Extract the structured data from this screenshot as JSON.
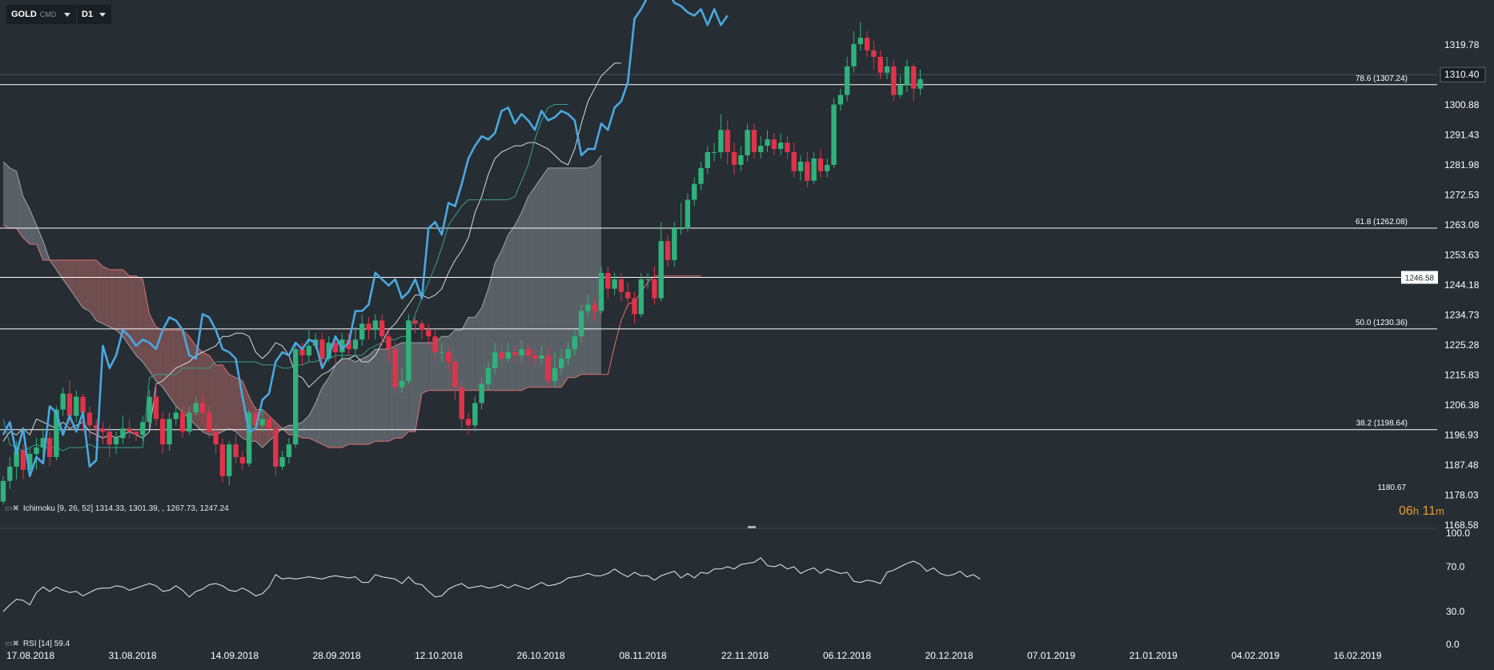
{
  "toolbar": {
    "symbol": "GOLD",
    "symbol_sub": "CMD",
    "timeframe": "D1"
  },
  "indicators": {
    "ichimoku_label": "Ichimoku [9, 26, 52]  1314.33,  1301.39,  , 1267.73,  1247.24",
    "rsi_label": "RSI [14]  59.4"
  },
  "timer": {
    "hours": "06",
    "h_unit": "h",
    "minutes": "11",
    "m_unit": "m"
  },
  "colors": {
    "background": "#262d33",
    "bull": "#2fb27b",
    "bear": "#e0334a",
    "comparison_line": "#4aa8e0",
    "cloud_bear": "#8a5a59",
    "cloud_bull": "#6b7378",
    "timer": "#e89a2c"
  },
  "chart_data": {
    "type": "candlestick",
    "symbol": "GOLD",
    "timeframe": "D1",
    "y_ticks": [
      1319.78,
      1310.4,
      1300.88,
      1291.43,
      1281.98,
      1272.53,
      1263.08,
      1253.63,
      1244.18,
      1234.73,
      1225.28,
      1215.83,
      1206.38,
      1196.93,
      1187.48,
      1178.03,
      1168.58
    ],
    "x_ticks": [
      "17.08.2018",
      "31.08.2018",
      "14.09.2018",
      "28.09.2018",
      "12.10.2018",
      "26.10.2018",
      "08.11.2018",
      "22.11.2018",
      "06.12.2018",
      "20.12.2018",
      "07.01.2019",
      "21.01.2019",
      "04.02.2019",
      "16.02.2019"
    ],
    "current_price": 1310.4,
    "price_labels": [
      {
        "text": "1180.67",
        "value": 1180.67
      },
      {
        "text": "1246.58",
        "value": 1246.58
      }
    ],
    "fib_levels": [
      {
        "label": "78.6 (1307.24)",
        "value": 1307.24
      },
      {
        "label": "61.8 (1262.08)",
        "value": 1262.08
      },
      {
        "label": "50.0 (1230.36)",
        "value": 1230.36
      },
      {
        "label": "38.2 (1198.64)",
        "value": 1198.64
      }
    ],
    "candles": [
      [
        1176,
        1182.5,
        1175,
        1184
      ],
      [
        1182.5,
        1187,
        1180,
        1190
      ],
      [
        1187,
        1192,
        1183,
        1195
      ],
      [
        1192,
        1186,
        1183,
        1194
      ],
      [
        1186,
        1191,
        1184,
        1193
      ],
      [
        1191,
        1193,
        1186,
        1196
      ],
      [
        1193,
        1196,
        1190,
        1199
      ],
      [
        1196,
        1190,
        1187,
        1198
      ],
      [
        1190,
        1205,
        1189,
        1206
      ],
      [
        1205,
        1210,
        1203,
        1212
      ],
      [
        1210,
        1203,
        1200,
        1214
      ],
      [
        1203,
        1209,
        1201,
        1211
      ],
      [
        1209,
        1204,
        1198,
        1210
      ],
      [
        1204,
        1200,
        1196,
        1206
      ],
      [
        1200,
        1199,
        1195,
        1202
      ],
      [
        1199,
        1198,
        1194,
        1201
      ],
      [
        1198,
        1194,
        1190,
        1200
      ],
      [
        1194,
        1196,
        1191,
        1198
      ],
      [
        1196,
        1199,
        1194,
        1203
      ],
      [
        1199,
        1198,
        1196,
        1202
      ],
      [
        1198,
        1197,
        1195,
        1199
      ],
      [
        1197,
        1201,
        1195,
        1203
      ],
      [
        1201,
        1209,
        1199,
        1211
      ],
      [
        1209,
        1202,
        1200,
        1213
      ],
      [
        1202,
        1194,
        1191,
        1204
      ],
      [
        1194,
        1202,
        1192,
        1204
      ],
      [
        1202,
        1204,
        1200,
        1206
      ],
      [
        1204,
        1198,
        1196,
        1206
      ],
      [
        1198,
        1204,
        1197,
        1206
      ],
      [
        1204,
        1207,
        1203,
        1209
      ],
      [
        1207,
        1204,
        1200,
        1210
      ],
      [
        1204,
        1198,
        1196,
        1206
      ],
      [
        1198,
        1194,
        1191,
        1200
      ],
      [
        1194,
        1184,
        1182,
        1196
      ],
      [
        1184,
        1194,
        1181,
        1195
      ],
      [
        1194,
        1190,
        1188,
        1197
      ],
      [
        1190,
        1188,
        1186,
        1192
      ],
      [
        1188,
        1204,
        1187,
        1205
      ],
      [
        1204,
        1200,
        1196,
        1206
      ],
      [
        1200,
        1202,
        1198,
        1205
      ],
      [
        1202,
        1199,
        1197,
        1203
      ],
      [
        1199,
        1187,
        1184,
        1201
      ],
      [
        1187,
        1190,
        1186,
        1192
      ],
      [
        1190,
        1194,
        1188,
        1196
      ],
      [
        1194,
        1224,
        1193,
        1226
      ],
      [
        1224,
        1222,
        1219,
        1226
      ],
      [
        1222,
        1225,
        1220,
        1230
      ],
      [
        1225,
        1227,
        1224,
        1229
      ],
      [
        1227,
        1221,
        1218,
        1229
      ],
      [
        1221,
        1226,
        1220,
        1228
      ],
      [
        1226,
        1223,
        1219,
        1228
      ],
      [
        1223,
        1227,
        1221,
        1229
      ],
      [
        1227,
        1224,
        1222,
        1229
      ],
      [
        1224,
        1227,
        1222,
        1231
      ],
      [
        1227,
        1232,
        1225,
        1235
      ],
      [
        1232,
        1230,
        1227,
        1234
      ],
      [
        1230,
        1233,
        1227,
        1235
      ],
      [
        1233,
        1228,
        1225,
        1235
      ],
      [
        1228,
        1224,
        1220,
        1230
      ],
      [
        1224,
        1212,
        1210,
        1226
      ],
      [
        1212,
        1214,
        1210,
        1218
      ],
      [
        1214,
        1233,
        1213,
        1235
      ],
      [
        1233,
        1232,
        1229,
        1234
      ],
      [
        1232,
        1230,
        1227,
        1233
      ],
      [
        1230,
        1228,
        1225,
        1232
      ],
      [
        1228,
        1223,
        1220,
        1230
      ],
      [
        1223,
        1223,
        1220,
        1226
      ],
      [
        1223,
        1220,
        1217,
        1225
      ],
      [
        1220,
        1212,
        1208,
        1222
      ],
      [
        1212,
        1202,
        1199,
        1214
      ],
      [
        1202,
        1200,
        1197,
        1204
      ],
      [
        1200,
        1207,
        1198,
        1209
      ],
      [
        1207,
        1213,
        1205,
        1215
      ],
      [
        1213,
        1218,
        1211,
        1220
      ],
      [
        1218,
        1223,
        1216,
        1226
      ],
      [
        1223,
        1221,
        1218,
        1225
      ],
      [
        1221,
        1223,
        1220,
        1226
      ],
      [
        1223,
        1222,
        1220,
        1225
      ],
      [
        1222,
        1224,
        1220,
        1227
      ],
      [
        1224,
        1222,
        1220,
        1226
      ],
      [
        1222,
        1221,
        1219,
        1224
      ],
      [
        1221,
        1222,
        1219,
        1225
      ],
      [
        1222,
        1214,
        1212,
        1225
      ],
      [
        1214,
        1218,
        1212,
        1223
      ],
      [
        1218,
        1221,
        1216,
        1224
      ],
      [
        1221,
        1224,
        1219,
        1226
      ],
      [
        1224,
        1228,
        1222,
        1230
      ],
      [
        1228,
        1236,
        1226,
        1238
      ],
      [
        1236,
        1238,
        1234,
        1241
      ],
      [
        1238,
        1236,
        1233,
        1240
      ],
      [
        1236,
        1248,
        1235,
        1250
      ],
      [
        1248,
        1243,
        1240,
        1250
      ],
      [
        1243,
        1246,
        1241,
        1248
      ],
      [
        1246,
        1242,
        1239,
        1248
      ],
      [
        1242,
        1240,
        1237,
        1245
      ],
      [
        1240,
        1235,
        1232,
        1242
      ],
      [
        1235,
        1246,
        1234,
        1248
      ],
      [
        1246,
        1246,
        1243,
        1248
      ],
      [
        1246,
        1240,
        1238,
        1250
      ],
      [
        1240,
        1258,
        1239,
        1264
      ],
      [
        1258,
        1252,
        1250,
        1260
      ],
      [
        1252,
        1262,
        1250,
        1264
      ],
      [
        1262,
        1262,
        1260,
        1270
      ],
      [
        1262,
        1271,
        1261,
        1273
      ],
      [
        1271,
        1276,
        1269,
        1278
      ],
      [
        1276,
        1281,
        1274,
        1283
      ],
      [
        1281,
        1286,
        1279,
        1288
      ],
      [
        1286,
        1286,
        1283,
        1289
      ],
      [
        1286,
        1293,
        1284,
        1298
      ],
      [
        1293,
        1286,
        1282,
        1296
      ],
      [
        1286,
        1282,
        1279,
        1289
      ],
      [
        1282,
        1285,
        1280,
        1288
      ],
      [
        1285,
        1293,
        1283,
        1295
      ],
      [
        1293,
        1286,
        1284,
        1295
      ],
      [
        1286,
        1288,
        1284,
        1291
      ],
      [
        1288,
        1290,
        1286,
        1293
      ],
      [
        1290,
        1287,
        1285,
        1292
      ],
      [
        1287,
        1289,
        1285,
        1292
      ],
      [
        1289,
        1286,
        1284,
        1291
      ],
      [
        1286,
        1280,
        1278,
        1289
      ],
      [
        1280,
        1283,
        1277,
        1285
      ],
      [
        1283,
        1277,
        1275,
        1286
      ],
      [
        1277,
        1284,
        1276,
        1286
      ],
      [
        1284,
        1280,
        1278,
        1287
      ],
      [
        1280,
        1282,
        1278,
        1284
      ],
      [
        1282,
        1301,
        1281,
        1303
      ],
      [
        1301,
        1304,
        1299,
        1306
      ],
      [
        1304,
        1313,
        1302,
        1316
      ],
      [
        1313,
        1320,
        1311,
        1324
      ],
      [
        1320,
        1322,
        1318,
        1327
      ],
      [
        1322,
        1318,
        1316,
        1324
      ],
      [
        1318,
        1316,
        1312,
        1321
      ],
      [
        1316,
        1311,
        1309,
        1318
      ],
      [
        1311,
        1313,
        1309,
        1316
      ],
      [
        1313,
        1304,
        1302,
        1315
      ],
      [
        1304,
        1307,
        1303,
        1310
      ],
      [
        1307,
        1313,
        1305,
        1315
      ],
      [
        1313,
        1306,
        1302,
        1314
      ],
      [
        1306,
        1309,
        1304,
        1312
      ]
    ],
    "comparison_line_values": [
      1197,
      1201,
      1191,
      1199,
      1184,
      1190,
      1188,
      1206,
      1204,
      1197,
      1203,
      1198,
      1204,
      1187,
      1189,
      1225,
      1218,
      1222,
      1230,
      1228,
      1225,
      1227,
      1226,
      1224,
      1230,
      1234,
      1233,
      1230,
      1222,
      1221,
      1235,
      1234,
      1230,
      1224,
      1223,
      1221,
      1209,
      1198,
      1199,
      1208,
      1210,
      1220,
      1223,
      1222,
      1226,
      1224,
      1227,
      1226,
      1218,
      1222,
      1228,
      1224,
      1226,
      1236,
      1236,
      1238,
      1248,
      1246,
      1244,
      1246,
      1240,
      1242,
      1246,
      1240,
      1262,
      1264,
      1260,
      1270,
      1269,
      1276,
      1284,
      1288,
      1291,
      1290,
      1292,
      1299,
      1300,
      1295,
      1298,
      1296,
      1293,
      1299,
      1296,
      1297,
      1299,
      1298,
      1296,
      1285,
      1287,
      1287,
      1295,
      1293,
      1300,
      1302,
      1308,
      1328,
      1331,
      1335,
      1338,
      1340,
      1337,
      1333,
      1332,
      1330,
      1329,
      1331,
      1326,
      1331,
      1326,
      1329
    ],
    "tenkan": [
      1195,
      1198,
      1197,
      1199,
      1197,
      1202,
      1201,
      1200,
      1199,
      1201,
      1199,
      1200,
      1201,
      1198,
      1197,
      1196,
      1197,
      1196,
      1197,
      1198,
      1197,
      1196,
      1198,
      1213,
      1214,
      1216,
      1218,
      1219,
      1220,
      1222,
      1223,
      1224,
      1225,
      1228,
      1228,
      1229,
      1229,
      1228,
      1223,
      1221,
      1223,
      1226,
      1225,
      1222,
      1216,
      1215,
      1212,
      1214,
      1216,
      1217,
      1219,
      1221,
      1221,
      1222,
      1220,
      1220,
      1222,
      1226,
      1230,
      1232,
      1235,
      1238,
      1241,
      1241,
      1240,
      1241,
      1243,
      1248,
      1252,
      1255,
      1259,
      1267,
      1272,
      1279,
      1284,
      1286,
      1287,
      1288,
      1288,
      1289,
      1289,
      1288,
      1287,
      1285,
      1283,
      1282,
      1287,
      1295,
      1302,
      1306,
      1310,
      1312,
      1314,
      1314
    ],
    "kijun": [
      1202,
      1194,
      1193,
      1192,
      1193,
      1194,
      1193,
      1193,
      1193,
      1192,
      1193,
      1193,
      1193,
      1194,
      1193,
      1193,
      1193,
      1193,
      1193,
      1193,
      1193,
      1193,
      1215,
      1216,
      1216,
      1216,
      1216,
      1218,
      1218,
      1218,
      1218,
      1218,
      1220,
      1220,
      1220,
      1220,
      1220,
      1220,
      1220,
      1219,
      1219,
      1219,
      1218,
      1218,
      1219,
      1219,
      1220,
      1220,
      1221,
      1221,
      1222,
      1222,
      1222,
      1222,
      1222,
      1224,
      1225,
      1226,
      1227,
      1227,
      1228,
      1228,
      1235,
      1240,
      1245,
      1250,
      1256,
      1263,
      1266,
      1269,
      1271,
      1271,
      1271,
      1271,
      1271,
      1271,
      1271,
      1272,
      1277,
      1282,
      1290,
      1296,
      1300,
      1301,
      1301,
      1301
    ],
    "senkou_a": [
      1283,
      1281,
      1280,
      1272,
      1268,
      1263,
      1258,
      1252,
      1249,
      1246,
      1243,
      1240,
      1237,
      1236,
      1233,
      1232,
      1231,
      1230,
      1228,
      1225,
      1222,
      1220,
      1217,
      1214,
      1212,
      1209,
      1206,
      1204,
      1202,
      1200,
      1198,
      1197,
      1197,
      1198,
      1199,
      1198,
      1196,
      1195,
      1195,
      1193,
      1195,
      1197,
      1199,
      1200,
      1200,
      1201,
      1203,
      1207,
      1212,
      1215,
      1219,
      1221,
      1221,
      1220,
      1221,
      1222,
      1224,
      1224,
      1224,
      1225,
      1226,
      1226,
      1226,
      1226,
      1226,
      1226,
      1228,
      1228,
      1230,
      1230,
      1234,
      1234,
      1237,
      1243,
      1251,
      1255,
      1260,
      1263,
      1267,
      1272,
      1275,
      1278,
      1281,
      1281,
      1281,
      1281,
      1281,
      1281,
      1281,
      1282,
      1285
    ],
    "senkou_b": [
      1263,
      1262,
      1262,
      1259,
      1257,
      1257,
      1252,
      1252,
      1252,
      1252,
      1252,
      1252,
      1252,
      1252,
      1252,
      1250,
      1249,
      1249,
      1249,
      1247,
      1247,
      1246,
      1235,
      1231,
      1230,
      1230,
      1230,
      1230,
      1228,
      1225,
      1223,
      1222,
      1219,
      1219,
      1216,
      1215,
      1214,
      1209,
      1205,
      1205,
      1203,
      1201,
      1199,
      1197,
      1197,
      1196,
      1196,
      1195,
      1194,
      1193,
      1193,
      1193,
      1194,
      1194,
      1194,
      1194,
      1195,
      1195,
      1195,
      1196,
      1196,
      1198,
      1198,
      1210,
      1211,
      1211,
      1211,
      1211,
      1211,
      1211,
      1211,
      1211,
      1211,
      1211,
      1211,
      1211,
      1211,
      1211,
      1211,
      1212,
      1212,
      1212,
      1212,
      1212,
      1212,
      1215,
      1215,
      1216,
      1216,
      1216,
      1216,
      1216,
      1225,
      1233,
      1238,
      1239,
      1242,
      1245,
      1247,
      1247,
      1247,
      1247,
      1247,
      1247,
      1247,
      1247
    ],
    "rsi": {
      "period": 14,
      "last": 59.4,
      "ticks": [
        100.0,
        70.0,
        30.0,
        0.0
      ],
      "values": [
        30,
        36,
        41,
        40,
        36,
        47,
        52,
        48,
        52,
        49,
        47,
        48,
        44,
        47,
        50,
        51,
        51,
        53,
        52,
        49,
        51,
        53,
        55,
        53,
        48,
        49,
        53,
        49,
        43,
        48,
        50,
        54,
        55,
        53,
        49,
        48,
        51,
        48,
        44,
        46,
        52,
        63,
        59,
        60,
        59,
        60,
        61,
        60,
        59,
        61,
        62,
        61,
        60,
        61,
        56,
        56,
        63,
        61,
        60,
        59,
        55,
        61,
        55,
        54,
        48,
        43,
        44,
        50,
        53,
        55,
        51,
        52,
        53,
        51,
        52,
        54,
        51,
        54,
        52,
        50,
        53,
        56,
        53,
        54,
        56,
        60,
        61,
        62,
        64,
        62,
        62,
        64,
        68,
        64,
        61,
        65,
        62,
        62,
        58,
        62,
        64,
        66,
        60,
        64,
        60,
        65,
        64,
        68,
        68,
        70,
        68,
        72,
        73,
        74,
        78,
        71,
        70,
        72,
        68,
        70,
        64,
        67,
        69,
        64,
        68,
        66,
        64,
        65,
        57,
        56,
        58,
        57,
        55,
        65,
        67,
        70,
        73,
        75,
        72,
        66,
        69,
        64,
        62,
        63,
        66,
        61,
        63,
        59
      ]
    }
  }
}
